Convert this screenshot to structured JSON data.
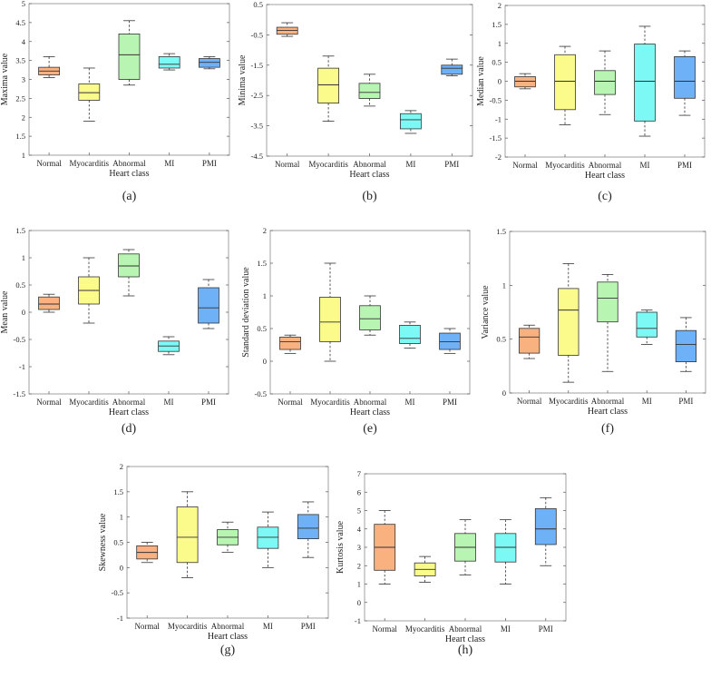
{
  "colors": {
    "Normal": "#f9b27f",
    "Myocarditis": "#fbfb8b",
    "Abnormal": "#b9f5b2",
    "MI": "#7df9f5",
    "PMI": "#6fb1f7"
  },
  "chart_data": [
    {
      "type": "box",
      "caption": "(a)",
      "xlabel": "Heart class",
      "ylabel": "Maxima value",
      "categories": [
        "Normal",
        "Myocarditis",
        "Abnormal",
        "MI",
        "PMI"
      ],
      "ylim": [
        1,
        5
      ],
      "yticks": [
        "1",
        "1.5",
        "2",
        "2.5",
        "3",
        "3.5",
        "4",
        "4.5",
        "5"
      ],
      "boxes": [
        {
          "min": 3.05,
          "q1": 3.12,
          "median": 3.22,
          "q3": 3.32,
          "max": 3.6
        },
        {
          "min": 1.9,
          "q1": 2.45,
          "median": 2.65,
          "q3": 2.88,
          "max": 3.3
        },
        {
          "min": 2.85,
          "q1": 3.0,
          "median": 3.65,
          "q3": 4.2,
          "max": 4.55
        },
        {
          "min": 3.25,
          "q1": 3.3,
          "median": 3.4,
          "q3": 3.6,
          "max": 3.68
        },
        {
          "min": 3.28,
          "q1": 3.32,
          "median": 3.45,
          "q3": 3.55,
          "max": 3.6
        }
      ]
    },
    {
      "type": "box",
      "caption": "(b)",
      "xlabel": "Heart class",
      "ylabel": "Minima value",
      "categories": [
        "Normal",
        "Myocarditis",
        "Abnormal",
        "MI",
        "PMI"
      ],
      "ylim": [
        -4.5,
        0.5
      ],
      "yticks": [
        "-4.5",
        "-3.5",
        "-2.5",
        "-1.5",
        "-0.5",
        "0.5"
      ],
      "boxes": [
        {
          "min": -0.55,
          "q1": -0.48,
          "median": -0.35,
          "q3": -0.25,
          "max": -0.1
        },
        {
          "min": -3.35,
          "q1": -2.75,
          "median": -2.15,
          "q3": -1.6,
          "max": -1.2
        },
        {
          "min": -2.85,
          "q1": -2.6,
          "median": -2.4,
          "q3": -2.1,
          "max": -1.8
        },
        {
          "min": -3.75,
          "q1": -3.6,
          "median": -3.3,
          "q3": -3.1,
          "max": -3.0
        },
        {
          "min": -1.85,
          "q1": -1.8,
          "median": -1.6,
          "q3": -1.5,
          "max": -1.3
        }
      ]
    },
    {
      "type": "box",
      "caption": "(c)",
      "xlabel": "Heart class",
      "ylabel": "Median value",
      "categories": [
        "Normal",
        "Myocarditis",
        "Abnormal",
        "MI",
        "PMI"
      ],
      "ylim": [
        -2,
        2
      ],
      "yticks": [
        "-2",
        "-1.5",
        "-1",
        "-0.5",
        "0",
        "0.5",
        "1",
        "1.5",
        "2"
      ],
      "boxes": [
        {
          "min": -0.2,
          "q1": -0.15,
          "median": 0.0,
          "q3": 0.12,
          "max": 0.2
        },
        {
          "min": -1.15,
          "q1": -0.75,
          "median": 0.0,
          "q3": 0.7,
          "max": 0.92
        },
        {
          "min": -0.88,
          "q1": -0.35,
          "median": 0.0,
          "q3": 0.28,
          "max": 0.8
        },
        {
          "min": -1.45,
          "q1": -1.05,
          "median": 0.0,
          "q3": 0.98,
          "max": 1.45
        },
        {
          "min": -0.9,
          "q1": -0.45,
          "median": 0.0,
          "q3": 0.65,
          "max": 0.8
        }
      ]
    },
    {
      "type": "box",
      "caption": "(d)",
      "xlabel": "Heart class",
      "ylabel": "Mean value",
      "categories": [
        "Normal",
        "Myocarditis",
        "Abnormal",
        "MI",
        "PMI"
      ],
      "ylim": [
        -1.5,
        1.5
      ],
      "yticks": [
        "-1.5",
        "-1",
        "-0.5",
        "0",
        "0.5",
        "1",
        "1.5"
      ],
      "boxes": [
        {
          "min": 0.0,
          "q1": 0.05,
          "median": 0.15,
          "q3": 0.28,
          "max": 0.33
        },
        {
          "min": -0.2,
          "q1": 0.15,
          "median": 0.4,
          "q3": 0.65,
          "max": 1.0
        },
        {
          "min": 0.3,
          "q1": 0.65,
          "median": 0.85,
          "q3": 1.07,
          "max": 1.15
        },
        {
          "min": -0.78,
          "q1": -0.72,
          "median": -0.62,
          "q3": -0.53,
          "max": -0.45
        },
        {
          "min": -0.3,
          "q1": -0.2,
          "median": 0.08,
          "q3": 0.45,
          "max": 0.6
        }
      ]
    },
    {
      "type": "box",
      "caption": "(e)",
      "xlabel": "Heart class",
      "ylabel": "Standard deviation value",
      "categories": [
        "Normal",
        "Myocarditis",
        "Abnormal",
        "MI",
        "PMI"
      ],
      "ylim": [
        -0.5,
        2
      ],
      "yticks": [
        "-0.5",
        "0",
        "0.5",
        "1",
        "1.5",
        "2"
      ],
      "boxes": [
        {
          "min": 0.12,
          "q1": 0.18,
          "median": 0.3,
          "q3": 0.37,
          "max": 0.4
        },
        {
          "min": 0.0,
          "q1": 0.3,
          "median": 0.6,
          "q3": 0.98,
          "max": 1.5
        },
        {
          "min": 0.4,
          "q1": 0.48,
          "median": 0.65,
          "q3": 0.85,
          "max": 1.0
        },
        {
          "min": 0.2,
          "q1": 0.27,
          "median": 0.35,
          "q3": 0.55,
          "max": 0.6
        },
        {
          "min": 0.12,
          "q1": 0.18,
          "median": 0.3,
          "q3": 0.43,
          "max": 0.5
        }
      ]
    },
    {
      "type": "box",
      "caption": "(f)",
      "xlabel": "Heart class",
      "ylabel": "Variance value",
      "categories": [
        "Normal",
        "Myocarditis",
        "Abnormal",
        "MI",
        "PMI"
      ],
      "ylim": [
        0,
        1.5
      ],
      "yticks": [
        "0",
        "0.5",
        "1",
        "1.5"
      ],
      "boxes": [
        {
          "min": 0.32,
          "q1": 0.37,
          "median": 0.52,
          "q3": 0.6,
          "max": 0.63
        },
        {
          "min": 0.1,
          "q1": 0.35,
          "median": 0.77,
          "q3": 0.97,
          "max": 1.2
        },
        {
          "min": 0.2,
          "q1": 0.66,
          "median": 0.88,
          "q3": 1.03,
          "max": 1.1
        },
        {
          "min": 0.45,
          "q1": 0.52,
          "median": 0.6,
          "q3": 0.75,
          "max": 0.77
        },
        {
          "min": 0.2,
          "q1": 0.29,
          "median": 0.45,
          "q3": 0.58,
          "max": 0.7
        }
      ]
    },
    {
      "type": "box",
      "caption": "(g)",
      "xlabel": "Heart class",
      "ylabel": "Skewness value",
      "categories": [
        "Normal",
        "Myocarditis",
        "Abnormal",
        "MI",
        "PMI"
      ],
      "ylim": [
        -1,
        2
      ],
      "yticks": [
        "-1",
        "-0.5",
        "0",
        "0.5",
        "1",
        "1.5",
        "2"
      ],
      "boxes": [
        {
          "min": 0.1,
          "q1": 0.17,
          "median": 0.3,
          "q3": 0.43,
          "max": 0.5
        },
        {
          "min": -0.2,
          "q1": 0.1,
          "median": 0.6,
          "q3": 1.2,
          "max": 1.5
        },
        {
          "min": 0.3,
          "q1": 0.45,
          "median": 0.6,
          "q3": 0.75,
          "max": 0.9
        },
        {
          "min": 0.0,
          "q1": 0.38,
          "median": 0.6,
          "q3": 0.8,
          "max": 1.1
        },
        {
          "min": 0.2,
          "q1": 0.57,
          "median": 0.78,
          "q3": 1.05,
          "max": 1.3
        }
      ]
    },
    {
      "type": "box",
      "caption": "(h)",
      "xlabel": "Heart class",
      "ylabel": "Kurtosis value",
      "categories": [
        "Normal",
        "Myocarditis",
        "Abnormal",
        "MI",
        "PMI"
      ],
      "ylim": [
        -1,
        7
      ],
      "yticks": [
        "-1",
        "0",
        "1",
        "2",
        "3",
        "4",
        "5",
        "6",
        "7"
      ],
      "boxes": [
        {
          "min": 1.0,
          "q1": 1.75,
          "median": 3.0,
          "q3": 4.25,
          "max": 5.0
        },
        {
          "min": 1.1,
          "q1": 1.45,
          "median": 1.8,
          "q3": 2.15,
          "max": 2.5
        },
        {
          "min": 1.5,
          "q1": 2.25,
          "median": 3.0,
          "q3": 3.75,
          "max": 4.5
        },
        {
          "min": 1.0,
          "q1": 2.2,
          "median": 3.0,
          "q3": 3.75,
          "max": 4.5
        },
        {
          "min": 2.0,
          "q1": 3.15,
          "median": 4.0,
          "q3": 5.1,
          "max": 5.7
        }
      ]
    }
  ]
}
